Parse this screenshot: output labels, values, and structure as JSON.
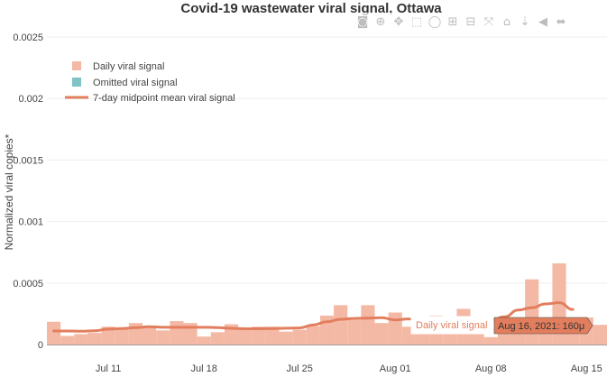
{
  "chart_data": {
    "type": "bar",
    "title": "Covid-19 wastewater viral signal, Ottawa",
    "ylabel": "Normalized viral copies*",
    "xlabel": "",
    "ylim": [
      0,
      0.0025
    ],
    "y_ticks": [
      {
        "value": 0,
        "label": "0"
      },
      {
        "value": 0.0005,
        "label": "0.0005"
      },
      {
        "value": 0.001,
        "label": "0.001"
      },
      {
        "value": 0.0015,
        "label": "0.0015"
      },
      {
        "value": 0.002,
        "label": "0.002"
      },
      {
        "value": 0.0025,
        "label": "0.0025"
      }
    ],
    "x_start": "2021-07-07",
    "x_end": "2021-08-16",
    "x_ticks": [
      {
        "date": "2021-07-11",
        "label": "Jul 11"
      },
      {
        "date": "2021-07-18",
        "label": "Jul 18"
      },
      {
        "date": "2021-07-25",
        "label": "Jul 25"
      },
      {
        "date": "2021-08-01",
        "label": "Aug 01"
      },
      {
        "date": "2021-08-08",
        "label": "Aug 08"
      },
      {
        "date": "2021-08-15",
        "label": "Aug 15"
      }
    ],
    "legend_placement": "top-left",
    "grid": true,
    "series": [
      {
        "name": "Daily viral signal",
        "kind": "bar",
        "color": "#f4b9a4",
        "dates": [
          "2021-07-07",
          "2021-07-08",
          "2021-07-09",
          "2021-07-10",
          "2021-07-11",
          "2021-07-12",
          "2021-07-13",
          "2021-07-14",
          "2021-07-15",
          "2021-07-16",
          "2021-07-17",
          "2021-07-18",
          "2021-07-19",
          "2021-07-20",
          "2021-07-21",
          "2021-07-22",
          "2021-07-23",
          "2021-07-24",
          "2021-07-25",
          "2021-07-26",
          "2021-07-27",
          "2021-07-28",
          "2021-07-29",
          "2021-07-30",
          "2021-07-31",
          "2021-08-01",
          "2021-08-02",
          "2021-08-03",
          "2021-08-04",
          "2021-08-05",
          "2021-08-06",
          "2021-08-07",
          "2021-08-08",
          "2021-08-09",
          "2021-08-10",
          "2021-08-11",
          "2021-08-12",
          "2021-08-13",
          "2021-08-14",
          "2021-08-15",
          "2021-08-16"
        ],
        "values": [
          0.000185,
          7e-05,
          8.5e-05,
          9.5e-05,
          0.000145,
          0.000135,
          0.000175,
          0.000135,
          0.000115,
          0.00019,
          0.000175,
          6.5e-05,
          0.0001,
          0.000165,
          0.00013,
          0.000145,
          0.000145,
          0.000105,
          0.00012,
          0.00015,
          0.000235,
          0.00032,
          0.0002,
          0.00032,
          0.000175,
          0.00026,
          0.000145,
          0.000145,
          0.000235,
          0.00016,
          0.00029,
          0.000165,
          6e-05,
          0.000135,
          0.00016,
          0.00053,
          0.00018,
          0.00066,
          0.00016,
          0.00022,
          0.00016
        ]
      },
      {
        "name": "Omitted viral signal",
        "kind": "bar",
        "color": "#7fc3c5",
        "dates": [],
        "values": []
      },
      {
        "name": "7-day midpoint mean viral signal",
        "kind": "line",
        "color": "#e27e5d",
        "dates": [
          "2021-07-07",
          "2021-07-08",
          "2021-07-09",
          "2021-07-10",
          "2021-07-11",
          "2021-07-12",
          "2021-07-13",
          "2021-07-14",
          "2021-07-15",
          "2021-07-16",
          "2021-07-17",
          "2021-07-18",
          "2021-07-19",
          "2021-07-20",
          "2021-07-21",
          "2021-07-22",
          "2021-07-23",
          "2021-07-24",
          "2021-07-25",
          "2021-07-26",
          "2021-07-27",
          "2021-07-28",
          "2021-07-29",
          "2021-07-30",
          "2021-07-31",
          "2021-08-01",
          "2021-08-02",
          "2021-08-03",
          "2021-08-04",
          "2021-08-05",
          "2021-08-06",
          "2021-08-07",
          "2021-08-08",
          "2021-08-09",
          "2021-08-10",
          "2021-08-11",
          "2021-08-12",
          "2021-08-13",
          "2021-08-14"
        ],
        "values": [
          0.00011,
          0.00011,
          0.000108,
          0.000112,
          0.000125,
          0.00013,
          0.000138,
          0.000145,
          0.00014,
          0.00014,
          0.00014,
          0.00014,
          0.000138,
          0.000132,
          0.000128,
          0.000128,
          0.00013,
          0.000133,
          0.000135,
          0.00016,
          0.000185,
          0.000205,
          0.000212,
          0.000215,
          0.000218,
          0.0002,
          0.000208,
          0.000195,
          0.000185,
          0.000175,
          0.000185,
          0.000185,
          0.000195,
          0.000225,
          0.00028,
          0.0003,
          0.00033,
          0.00034,
          0.000285
        ]
      }
    ],
    "hover": {
      "series_label": "Daily viral signal",
      "text": "Aug 16, 2021: 160μ"
    }
  },
  "modebar": {
    "icons": [
      "camera-icon",
      "zoom-icon",
      "pan-icon",
      "box-select-icon",
      "lasso-select-icon",
      "zoom-in-icon",
      "zoom-out-icon",
      "autoscale-icon",
      "reset-axes-icon",
      "toggle-spike-lines-icon",
      "show-closest-data-icon",
      "compare-data-icon"
    ],
    "glyphs": [
      "◙",
      "⊕",
      "✥",
      "⬚",
      "◯",
      "⊞",
      "⊟",
      "⤧",
      "⌂",
      "⇣",
      "◀",
      "⬌"
    ]
  }
}
